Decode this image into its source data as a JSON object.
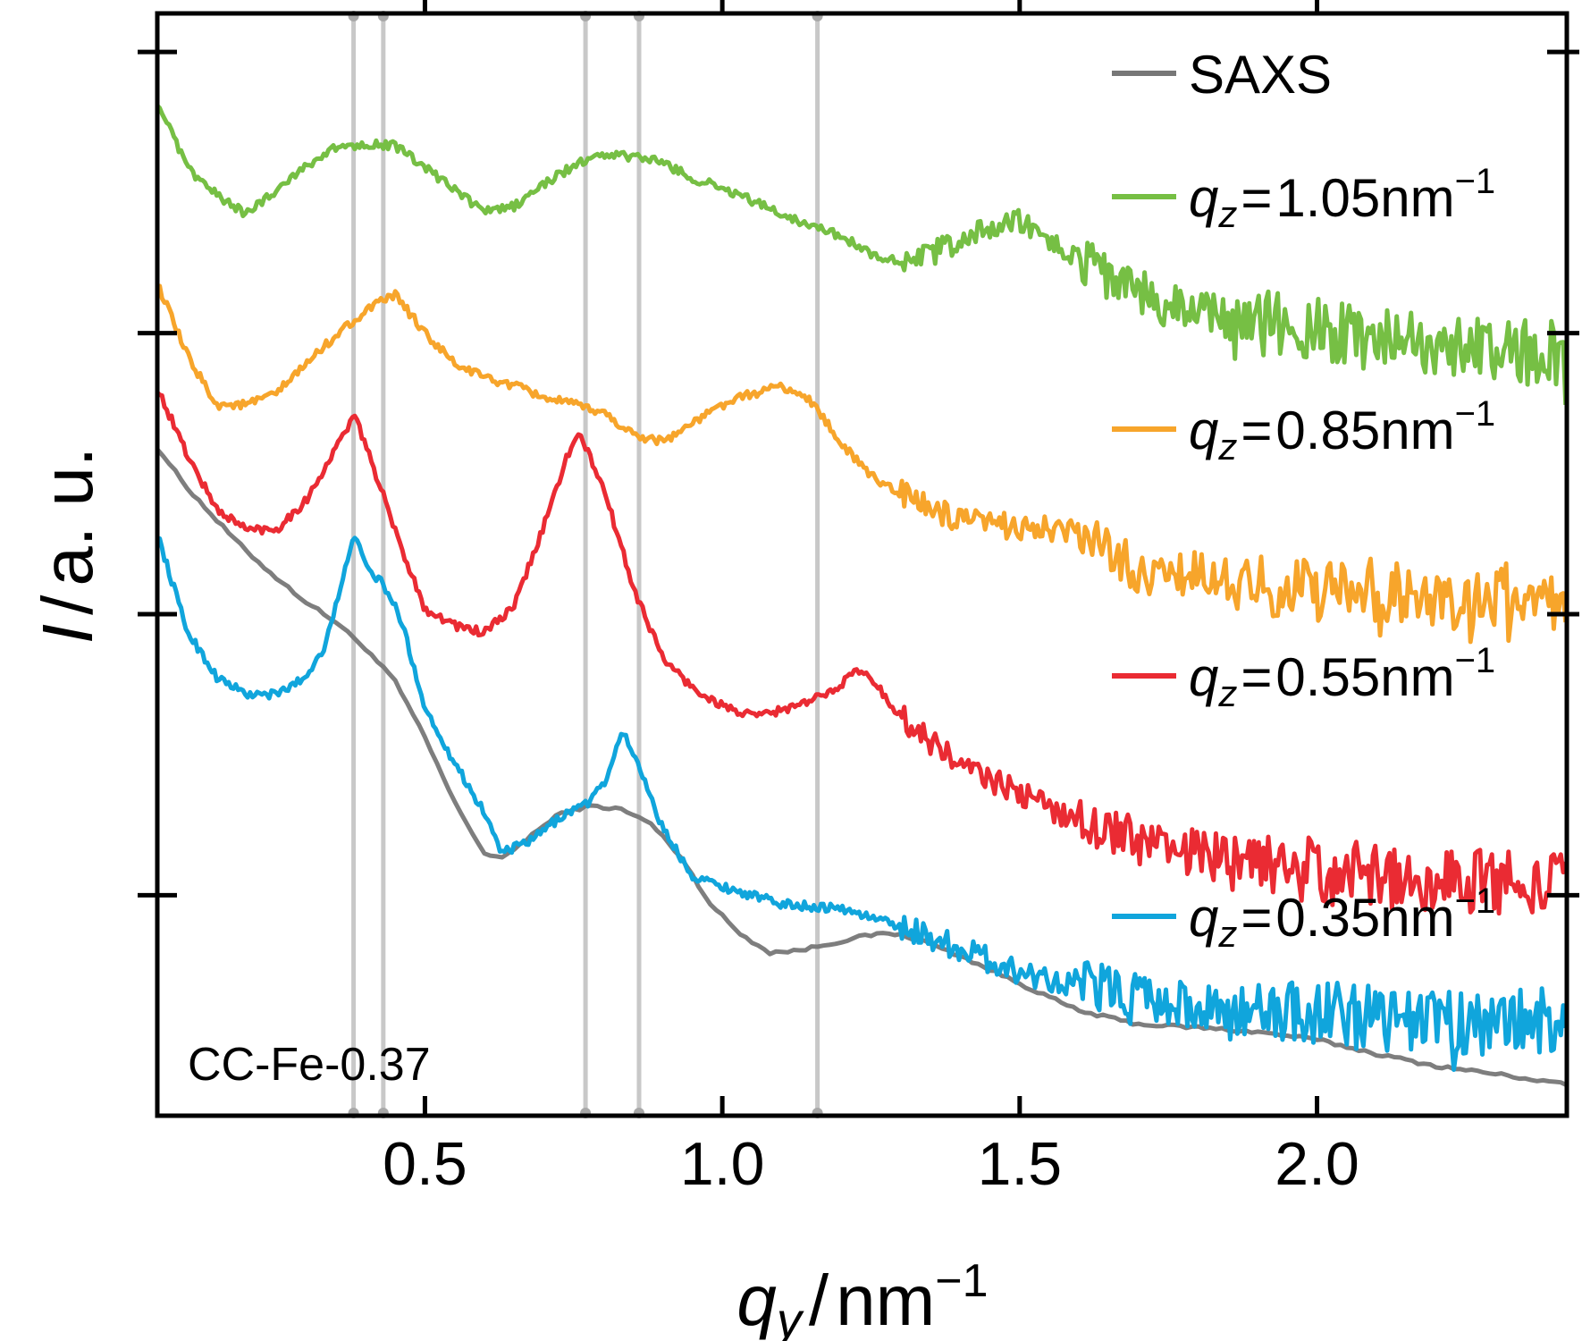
{
  "chart_data": {
    "type": "line",
    "annotation": "CC-Fe-0.37",
    "xlim": [
      0.05,
      2.42
    ],
    "ylim": [
      0,
      10
    ],
    "x_ticks": [
      {
        "value": 0.5,
        "label": "0.5"
      },
      {
        "value": 1.0,
        "label": "1.0"
      },
      {
        "value": 1.5,
        "label": "1.5"
      },
      {
        "value": 2.0,
        "label": "2.0"
      }
    ],
    "y_axis_label": {
      "var": "I",
      "sep": "/",
      "unit": "a. u."
    },
    "x_axis_label": {
      "var": "q",
      "sub": "y",
      "sep": "/",
      "unit": "nm",
      "exp": "−1"
    },
    "y_tick_labels": "none",
    "grid": false,
    "reference_lines_x": [
      0.38,
      0.43,
      0.77,
      0.86,
      1.16
    ],
    "legend": {
      "placement": "right",
      "qz_prefix": "q",
      "qz_sub": "z",
      "eq": "=",
      "unit": "nm",
      "exp": "−1"
    },
    "series": [
      {
        "name": "SAXS",
        "color": "#777777",
        "x": [
          0.05,
          0.1,
          0.15,
          0.2,
          0.25,
          0.3,
          0.35,
          0.4,
          0.45,
          0.5,
          0.55,
          0.6,
          0.63,
          0.68,
          0.73,
          0.78,
          0.83,
          0.88,
          0.93,
          0.98,
          1.03,
          1.08,
          1.13,
          1.18,
          1.23,
          1.28,
          1.33,
          1.4,
          1.5,
          1.6,
          1.7,
          1.8,
          1.9,
          2.0,
          2.1,
          2.2,
          2.3,
          2.42
        ],
        "y": [
          6.06,
          5.7,
          5.4,
          5.12,
          4.88,
          4.66,
          4.48,
          4.24,
          3.94,
          3.43,
          2.84,
          2.38,
          2.33,
          2.55,
          2.75,
          2.81,
          2.78,
          2.65,
          2.35,
          1.92,
          1.65,
          1.48,
          1.5,
          1.56,
          1.62,
          1.66,
          1.6,
          1.45,
          1.2,
          0.95,
          0.83,
          0.8,
          0.76,
          0.69,
          0.56,
          0.45,
          0.38,
          0.28
        ]
      },
      {
        "name": "0.35",
        "color": "#10A5DC",
        "x": [
          0.05,
          0.1,
          0.15,
          0.2,
          0.25,
          0.3,
          0.33,
          0.36,
          0.38,
          0.4,
          0.43,
          0.46,
          0.5,
          0.55,
          0.6,
          0.63,
          0.68,
          0.73,
          0.78,
          0.81,
          0.83,
          0.86,
          0.9,
          0.95,
          1.0,
          1.05,
          1.1,
          1.2,
          1.3,
          1.4,
          1.5,
          1.6,
          1.7,
          1.8,
          1.9,
          2.0,
          2.1,
          2.2,
          2.3,
          2.42
        ],
        "y": [
          5.28,
          4.4,
          3.98,
          3.82,
          3.82,
          3.98,
          4.25,
          4.8,
          5.3,
          4.98,
          4.82,
          4.5,
          3.7,
          3.2,
          2.75,
          2.38,
          2.5,
          2.72,
          2.86,
          3.1,
          3.5,
          3.18,
          2.6,
          2.18,
          2.08,
          2.0,
          1.92,
          1.88,
          1.72,
          1.52,
          1.3,
          1.2,
          1.1,
          0.98,
          0.95,
          0.92,
          0.9,
          0.82,
          0.85,
          0.88
        ]
      },
      {
        "name": "0.55",
        "color": "#EA2B33",
        "x": [
          0.05,
          0.1,
          0.15,
          0.2,
          0.25,
          0.3,
          0.35,
          0.38,
          0.4,
          0.45,
          0.5,
          0.55,
          0.6,
          0.65,
          0.7,
          0.74,
          0.76,
          0.8,
          0.85,
          0.9,
          0.95,
          1.0,
          1.05,
          1.1,
          1.15,
          1.2,
          1.23,
          1.26,
          1.3,
          1.4,
          1.5,
          1.6,
          1.7,
          1.8,
          1.9,
          2.0,
          2.1,
          2.2,
          2.3,
          2.42
        ],
        "y": [
          6.6,
          6.0,
          5.5,
          5.32,
          5.32,
          5.58,
          6.05,
          6.35,
          6.1,
          5.3,
          4.6,
          4.45,
          4.38,
          4.62,
          5.35,
          6.0,
          6.18,
          5.7,
          4.8,
          4.15,
          3.88,
          3.72,
          3.62,
          3.68,
          3.76,
          3.92,
          4.05,
          3.9,
          3.62,
          3.18,
          2.92,
          2.68,
          2.5,
          2.38,
          2.28,
          2.22,
          2.18,
          2.15,
          2.12,
          2.1
        ]
      },
      {
        "name": "0.85",
        "color": "#F7A52B",
        "x": [
          0.05,
          0.1,
          0.15,
          0.2,
          0.25,
          0.3,
          0.35,
          0.4,
          0.45,
          0.5,
          0.55,
          0.6,
          0.65,
          0.7,
          0.75,
          0.8,
          0.85,
          0.9,
          0.95,
          1.0,
          1.05,
          1.1,
          1.15,
          1.2,
          1.25,
          1.3,
          1.4,
          1.5,
          1.6,
          1.7,
          1.8,
          1.9,
          2.0,
          2.1,
          2.2,
          2.3,
          2.42
        ],
        "y": [
          7.55,
          6.9,
          6.45,
          6.45,
          6.55,
          6.82,
          7.08,
          7.3,
          7.45,
          7.1,
          6.82,
          6.7,
          6.62,
          6.52,
          6.45,
          6.38,
          6.18,
          6.12,
          6.28,
          6.45,
          6.55,
          6.62,
          6.48,
          6.1,
          5.8,
          5.65,
          5.38,
          5.35,
          5.28,
          4.95,
          4.9,
          4.82,
          4.78,
          4.75,
          4.7,
          4.72,
          4.7
        ]
      },
      {
        "name": "1.05",
        "color": "#76BF44",
        "x": [
          0.05,
          0.1,
          0.15,
          0.2,
          0.25,
          0.3,
          0.35,
          0.4,
          0.45,
          0.5,
          0.55,
          0.6,
          0.65,
          0.7,
          0.75,
          0.8,
          0.85,
          0.9,
          0.95,
          1.0,
          1.05,
          1.1,
          1.15,
          1.2,
          1.25,
          1.3,
          1.35,
          1.4,
          1.45,
          1.5,
          1.55,
          1.6,
          1.7,
          1.8,
          1.9,
          2.0,
          2.1,
          2.2,
          2.3,
          2.42
        ],
        "y": [
          9.2,
          8.6,
          8.35,
          8.18,
          8.4,
          8.62,
          8.78,
          8.82,
          8.8,
          8.6,
          8.4,
          8.2,
          8.25,
          8.45,
          8.62,
          8.72,
          8.7,
          8.65,
          8.5,
          8.42,
          8.3,
          8.18,
          8.08,
          7.98,
          7.82,
          7.75,
          7.8,
          7.95,
          8.05,
          8.1,
          7.95,
          7.75,
          7.45,
          7.28,
          7.2,
          7.12,
          7.05,
          7.0,
          6.95,
          6.9
        ]
      }
    ]
  }
}
